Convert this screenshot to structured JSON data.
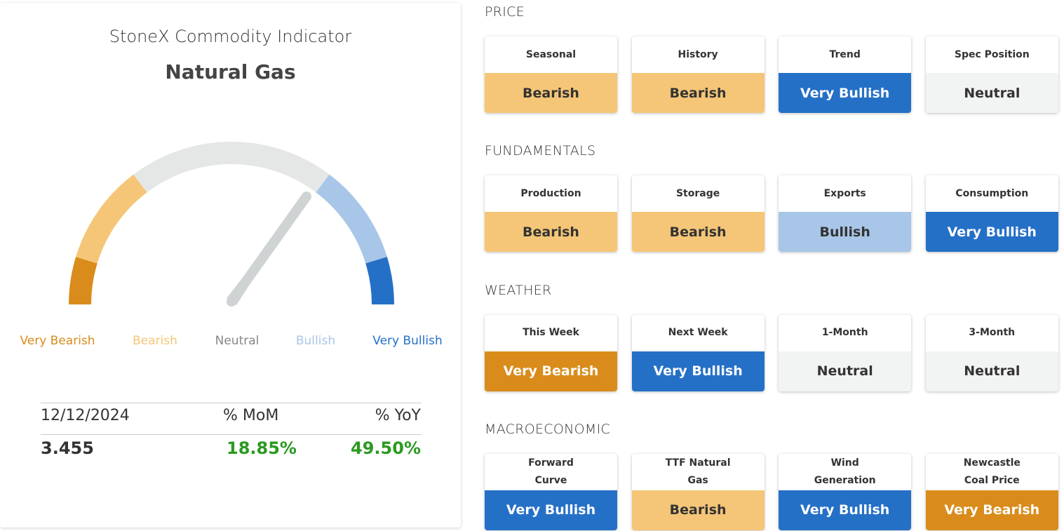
{
  "gauge": {
    "title": "StoneX Commodity Indicator",
    "commodity": "Natural Gas",
    "levels": [
      {
        "label": "Very Bearish",
        "color": "#d98c1b"
      },
      {
        "label": "Bearish",
        "color": "#f5c677"
      },
      {
        "label": "Neutral",
        "color": "#e5e7e6"
      },
      {
        "label": "Bullish",
        "color": "#a8c6e8"
      },
      {
        "label": "Very Bullish",
        "color": "#2570c7"
      }
    ]
  },
  "stats": {
    "headers": [
      "12/12/2024",
      "% MoM",
      "% YoY"
    ],
    "values": [
      "3.455",
      "18.85%",
      "49.50%"
    ]
  },
  "sections": [
    {
      "title": "PRICE",
      "cards": [
        {
          "label": "Seasonal",
          "rating": "Bearish",
          "color": "#f5c677"
        },
        {
          "label": "History",
          "rating": "Bearish",
          "color": "#f5c677"
        },
        {
          "label": "Trend",
          "rating": "Very Bullish",
          "color": "#2570c7"
        },
        {
          "label": "Spec Position",
          "rating": "Neutral",
          "color": "#f2f3f3"
        }
      ]
    },
    {
      "title": "FUNDAMENTALS",
      "cards": [
        {
          "label": "Production",
          "rating": "Bearish",
          "color": "#f5c677"
        },
        {
          "label": "Storage",
          "rating": "Bearish",
          "color": "#f5c677"
        },
        {
          "label": "Exports",
          "rating": "Bullish",
          "color": "#a8c6e8"
        },
        {
          "label": "Consumption",
          "rating": "Very Bullish",
          "color": "#2570c7"
        }
      ]
    },
    {
      "title": "WEATHER",
      "cards": [
        {
          "label": "This Week",
          "rating": "Very Bearish",
          "color": "#d98c1b"
        },
        {
          "label": "Next Week",
          "rating": "Very Bullish",
          "color": "#2570c7"
        },
        {
          "label": "1-Month",
          "rating": "Neutral",
          "color": "#f2f3f3"
        },
        {
          "label": "3-Month",
          "rating": "Neutral",
          "color": "#f2f3f3"
        }
      ]
    },
    {
      "title": "MACROECONOMIC",
      "cards": [
        {
          "label": "Forward Curve",
          "rating": "Very Bullish",
          "color": "#2570c7"
        },
        {
          "label": "TTF Natural Gas",
          "rating": "Bearish",
          "color": "#f5c677"
        },
        {
          "label": "Wind Generation",
          "rating": "Very Bullish",
          "color": "#2570c7"
        },
        {
          "label": "Newcastle Coal Price",
          "rating": "Very Bearish",
          "color": "#d98c1b"
        }
      ]
    }
  ]
}
